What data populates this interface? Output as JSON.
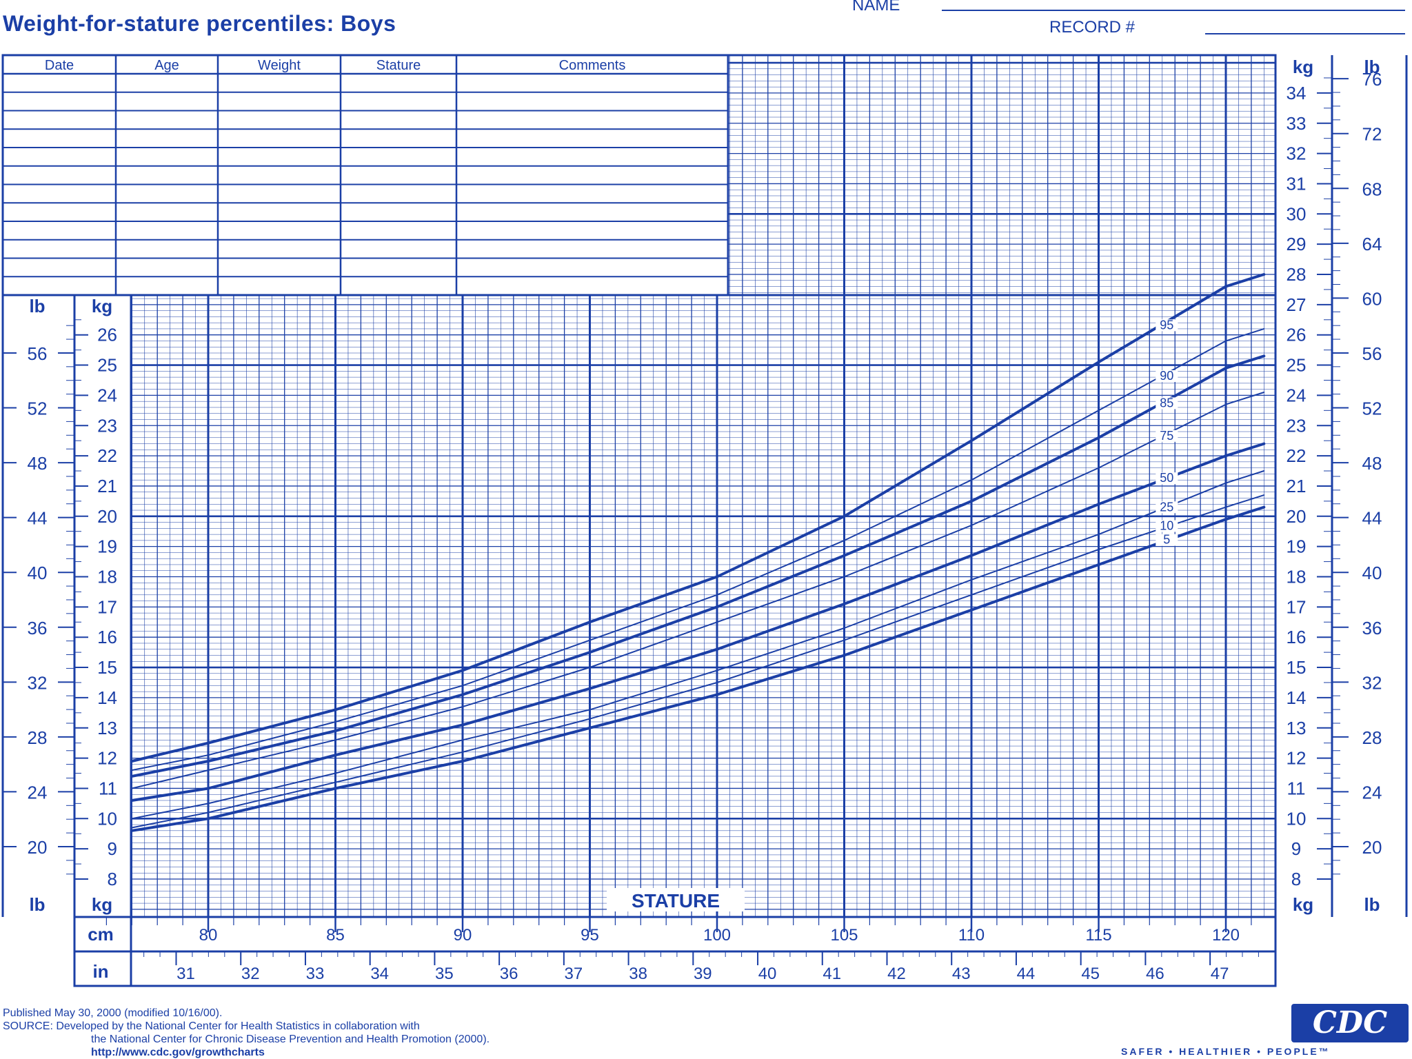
{
  "header": {
    "title": "Weight-for-stature percentiles: Boys",
    "name_label": "NAME",
    "record_label": "RECORD #"
  },
  "record_table": {
    "columns": [
      "Date",
      "Age",
      "Weight",
      "Stature",
      "Comments"
    ],
    "rows": 12
  },
  "chart_data": {
    "type": "line",
    "xlabel": "STATURE",
    "x_unit": "cm",
    "x_unit_secondary": "in",
    "xlim": [
      75,
      122
    ],
    "x_ticks": [
      80,
      85,
      90,
      95,
      100,
      105,
      110,
      115,
      120
    ],
    "x_ticks_secondary": [
      31,
      32,
      33,
      34,
      35,
      36,
      37,
      38,
      39,
      40,
      41,
      42,
      43,
      44,
      45,
      46,
      47
    ],
    "y_unit": "kg",
    "y_unit_secondary": "lb",
    "ylim": [
      7,
      35
    ],
    "y_ticks_left": [
      8,
      9,
      10,
      11,
      12,
      13,
      14,
      15,
      16,
      17,
      18,
      19,
      20,
      21,
      22,
      23,
      24,
      25,
      26
    ],
    "y_ticks_right": [
      8,
      9,
      10,
      11,
      12,
      13,
      14,
      15,
      16,
      17,
      18,
      19,
      20,
      21,
      22,
      23,
      24,
      25,
      26,
      27,
      28,
      29,
      30,
      31,
      32,
      33,
      34
    ],
    "y_ticks_lb_left": [
      20,
      24,
      28,
      32,
      36,
      40,
      44,
      48,
      52,
      56
    ],
    "y_ticks_lb_right": [
      20,
      24,
      28,
      32,
      36,
      40,
      44,
      48,
      52,
      56,
      60,
      64,
      68,
      72,
      76
    ],
    "grid": true,
    "series": [
      {
        "name": "95",
        "bold": true,
        "x": [
          77,
          80,
          85,
          90,
          95,
          100,
          105,
          110,
          115,
          120,
          121.5
        ],
        "y": [
          11.9,
          12.5,
          13.6,
          14.9,
          16.5,
          18.0,
          20.0,
          22.5,
          25.1,
          27.6,
          28.0
        ]
      },
      {
        "name": "90",
        "bold": false,
        "x": [
          77,
          80,
          85,
          90,
          95,
          100,
          105,
          110,
          115,
          120,
          121.5
        ],
        "y": [
          11.6,
          12.1,
          13.2,
          14.4,
          15.9,
          17.4,
          19.2,
          21.2,
          23.5,
          25.8,
          26.2
        ]
      },
      {
        "name": "85",
        "bold": true,
        "x": [
          77,
          80,
          85,
          90,
          95,
          100,
          105,
          110,
          115,
          120,
          121.5
        ],
        "y": [
          11.4,
          11.9,
          12.9,
          14.1,
          15.5,
          17.0,
          18.7,
          20.5,
          22.6,
          24.9,
          25.3
        ]
      },
      {
        "name": "75",
        "bold": false,
        "x": [
          77,
          80,
          85,
          90,
          95,
          100,
          105,
          110,
          115,
          120,
          121.5
        ],
        "y": [
          11.0,
          11.6,
          12.6,
          13.7,
          15.0,
          16.5,
          18.0,
          19.7,
          21.6,
          23.7,
          24.1
        ]
      },
      {
        "name": "50",
        "bold": true,
        "x": [
          77,
          80,
          85,
          90,
          95,
          100,
          105,
          110,
          115,
          120,
          121.5
        ],
        "y": [
          10.6,
          11.0,
          12.1,
          13.1,
          14.3,
          15.6,
          17.1,
          18.7,
          20.4,
          22.0,
          22.4
        ]
      },
      {
        "name": "25",
        "bold": false,
        "x": [
          77,
          80,
          85,
          90,
          95,
          100,
          105,
          110,
          115,
          120,
          121.5
        ],
        "y": [
          10.0,
          10.5,
          11.5,
          12.6,
          13.6,
          14.9,
          16.3,
          17.9,
          19.4,
          21.1,
          21.5
        ]
      },
      {
        "name": "10",
        "bold": false,
        "x": [
          77,
          80,
          85,
          90,
          95,
          100,
          105,
          110,
          115,
          120,
          121.5
        ],
        "y": [
          9.7,
          10.2,
          11.2,
          12.2,
          13.3,
          14.5,
          15.9,
          17.4,
          18.9,
          20.3,
          20.7
        ]
      },
      {
        "name": "5",
        "bold": true,
        "x": [
          77,
          80,
          85,
          90,
          95,
          100,
          105,
          110,
          115,
          120,
          121.5
        ],
        "y": [
          9.6,
          10.0,
          11.0,
          11.9,
          13.0,
          14.1,
          15.4,
          16.9,
          18.4,
          19.9,
          20.3
        ]
      }
    ]
  },
  "footer": {
    "published": "Published May 30, 2000 (modified 10/16/00).",
    "source_line1": "SOURCE: Developed by the National Center for Health Statistics in collaboration with",
    "source_line2": "the National Center for Chronic Disease Prevention and Health Promotion (2000).",
    "url": "http://www.cdc.gov/growthcharts",
    "logo_text": "CDC",
    "tagline": "SAFER • HEALTHIER • PEOPLE™"
  },
  "colors": {
    "ink": "#1b3fa6",
    "paper": "#ffffff"
  }
}
